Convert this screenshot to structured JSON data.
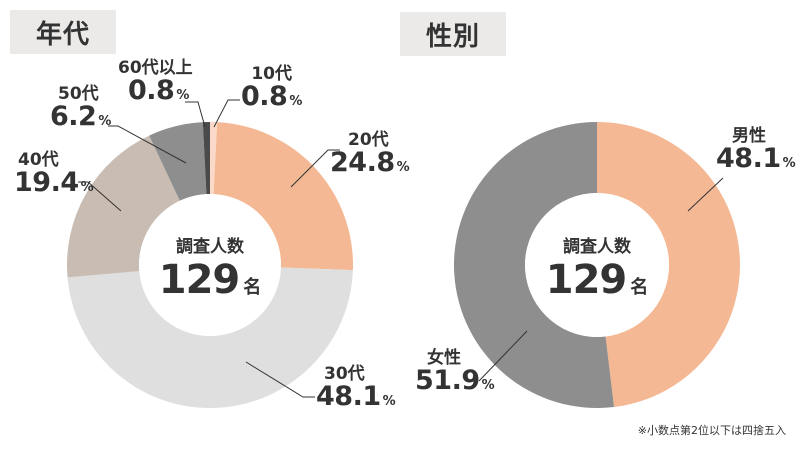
{
  "titles": {
    "age": "年代",
    "gender": "性別"
  },
  "center": {
    "title": "調査人数",
    "count": "129",
    "unit": "名"
  },
  "footnote": "※小数点第2位以下は四捨五入",
  "percent_sign": "%",
  "colors": {
    "salmon": "#f4b994",
    "light_gray": "#dfdfdf",
    "beige": "#c9bdb3",
    "mid_gray": "#8e8e8e",
    "dark_gray": "#4a4a4a",
    "pale_pink": "#fad9c8"
  },
  "chart_data": [
    {
      "type": "pie",
      "donut": true,
      "title": "年代",
      "center_label": "調査人数 129名",
      "categories": [
        "10代",
        "20代",
        "30代",
        "40代",
        "50代",
        "60代以上"
      ],
      "values": [
        0.8,
        24.8,
        48.1,
        19.4,
        6.2,
        0.8
      ],
      "unit": "%",
      "colors": [
        "#fad9c8",
        "#f4b994",
        "#dfdfdf",
        "#c9bdb3",
        "#8e8e8e",
        "#4a4a4a"
      ]
    },
    {
      "type": "pie",
      "donut": true,
      "title": "性別",
      "center_label": "調査人数 129名",
      "categories": [
        "男性",
        "女性"
      ],
      "values": [
        48.1,
        51.9
      ],
      "unit": "%",
      "colors": [
        "#f4b994",
        "#8e8e8e"
      ]
    }
  ],
  "age_labels": [
    {
      "cat": "10代",
      "val": "0.8"
    },
    {
      "cat": "20代",
      "val": "24.8"
    },
    {
      "cat": "30代",
      "val": "48.1"
    },
    {
      "cat": "40代",
      "val": "19.4"
    },
    {
      "cat": "50代",
      "val": "6.2"
    },
    {
      "cat": "60代以上",
      "val": "0.8"
    }
  ],
  "gender_labels": [
    {
      "cat": "男性",
      "val": "48.1"
    },
    {
      "cat": "女性",
      "val": "51.9"
    }
  ]
}
